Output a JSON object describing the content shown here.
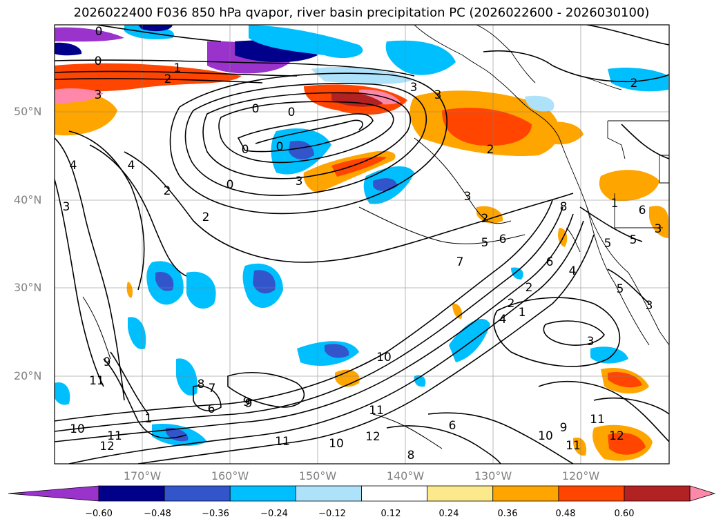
{
  "title": "2026022400 F036 850 hPa qvapor, river basin precipitation PC (2026022600 - 2026030100)",
  "latitude_labels": [
    "50°N",
    "40°N",
    "30°N",
    "20°N"
  ],
  "longitude_labels": [
    "170°W",
    "160°W",
    "150°W",
    "140°W",
    "130°W",
    "120°W"
  ],
  "colorbar": {
    "ticks": [
      "−0.60",
      "−0.48",
      "−0.36",
      "−0.24",
      "−0.12",
      "0.12",
      "0.24",
      "0.36",
      "0.48",
      "0.60"
    ],
    "colors": [
      "#9933cc",
      "#00008b",
      "#3355cc",
      "#00bfff",
      "#aee2fa",
      "#ffffff",
      "#fce98c",
      "#ffa500",
      "#ff4500",
      "#b22222",
      "#ff88aa"
    ]
  },
  "contour_labels": [
    "0",
    "0",
    "1",
    "2",
    "3",
    "0",
    "0",
    "0",
    "0",
    "3",
    "3",
    "2",
    "2",
    "4",
    "4",
    "2",
    "2",
    "3",
    "3",
    "0",
    "3",
    "2",
    "8",
    "5",
    "6",
    "7",
    "6",
    "4",
    "5",
    "5",
    "1",
    "6",
    "3",
    "3",
    "5",
    "2",
    "4",
    "3",
    "10",
    "11",
    "9",
    "9",
    "8",
    "7",
    "6",
    "10",
    "12",
    "11",
    "11",
    "11",
    "10",
    "12",
    "11",
    "9",
    "8",
    "10",
    "11",
    "12",
    "9",
    "2",
    "1",
    "1",
    "6"
  ]
}
